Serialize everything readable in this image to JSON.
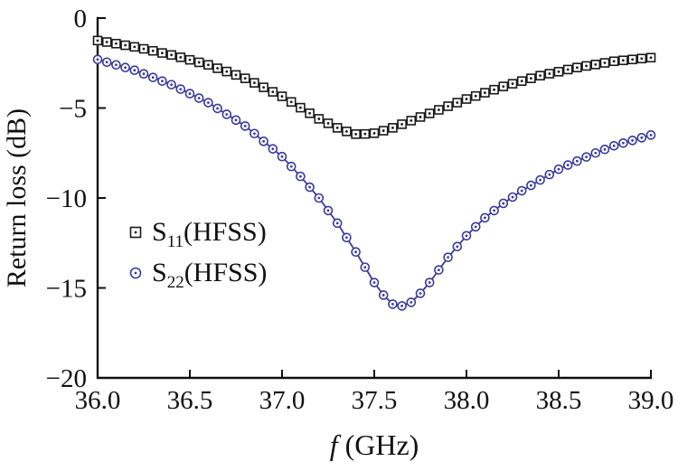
{
  "chart_data": {
    "type": "line",
    "title": "",
    "xlabel": {
      "italic": "f",
      "rest": " (GHz)"
    },
    "ylabel": "Return loss (dB)",
    "xlim": [
      36.0,
      39.0
    ],
    "ylim": [
      -20,
      0
    ],
    "grid": false,
    "axis_color": "#111111",
    "x_tick_values": [
      36.0,
      36.5,
      37.0,
      37.5,
      38.0,
      38.5,
      39.0
    ],
    "x_tick_labels": [
      "36.0",
      "36.5",
      "37.0",
      "37.5",
      "38.0",
      "38.5",
      "39.0"
    ],
    "y_tick_values": [
      0,
      -5,
      -10,
      -15,
      -20
    ],
    "y_tick_labels": [
      "0",
      "−5",
      "−10",
      "−15",
      "−20"
    ],
    "x": [
      36.0,
      36.05,
      36.1,
      36.15,
      36.2,
      36.25,
      36.3,
      36.35,
      36.4,
      36.45,
      36.5,
      36.55,
      36.6,
      36.65,
      36.7,
      36.75,
      36.8,
      36.85,
      36.9,
      36.95,
      37.0,
      37.05,
      37.1,
      37.15,
      37.2,
      37.25,
      37.3,
      37.35,
      37.4,
      37.45,
      37.5,
      37.55,
      37.6,
      37.65,
      37.7,
      37.75,
      37.8,
      37.85,
      37.9,
      37.95,
      38.0,
      38.05,
      38.1,
      38.15,
      38.2,
      38.25,
      38.3,
      38.35,
      38.4,
      38.45,
      38.5,
      38.55,
      38.6,
      38.65,
      38.7,
      38.75,
      38.8,
      38.85,
      38.9,
      38.95,
      39.0
    ],
    "series": [
      {
        "name": "S11(HFSS)",
        "legend": {
          "base": "S",
          "sub": "11",
          "rest": "(HFSS)"
        },
        "marker": "square",
        "color": "#1a1a1a",
        "values": [
          -1.25,
          -1.33,
          -1.42,
          -1.51,
          -1.6,
          -1.71,
          -1.82,
          -1.94,
          -2.05,
          -2.18,
          -2.32,
          -2.46,
          -2.6,
          -2.79,
          -2.97,
          -3.16,
          -3.35,
          -3.6,
          -3.85,
          -4.1,
          -4.35,
          -4.66,
          -4.98,
          -5.29,
          -5.6,
          -5.85,
          -6.1,
          -6.3,
          -6.45,
          -6.44,
          -6.4,
          -6.26,
          -6.1,
          -5.9,
          -5.7,
          -5.5,
          -5.3,
          -5.1,
          -4.9,
          -4.7,
          -4.5,
          -4.33,
          -4.15,
          -3.98,
          -3.8,
          -3.65,
          -3.5,
          -3.35,
          -3.2,
          -3.09,
          -2.98,
          -2.86,
          -2.75,
          -2.66,
          -2.58,
          -2.49,
          -2.4,
          -2.35,
          -2.3,
          -2.25,
          -2.2
        ]
      },
      {
        "name": "S22(HFSS)",
        "legend": {
          "base": "S",
          "sub": "22",
          "rest": "(HFSS)"
        },
        "marker": "circle",
        "color": "#3a3a9b",
        "values": [
          -2.3,
          -2.45,
          -2.6,
          -2.75,
          -2.9,
          -3.1,
          -3.3,
          -3.5,
          -3.7,
          -3.95,
          -4.2,
          -4.45,
          -4.7,
          -5.02,
          -5.35,
          -5.67,
          -6.0,
          -6.42,
          -6.85,
          -7.27,
          -7.7,
          -8.25,
          -8.8,
          -9.4,
          -10.0,
          -10.7,
          -11.4,
          -12.2,
          -13.0,
          -13.85,
          -14.7,
          -15.4,
          -15.9,
          -16.0,
          -15.8,
          -15.3,
          -14.7,
          -14.0,
          -13.3,
          -12.7,
          -12.1,
          -11.6,
          -11.1,
          -10.7,
          -10.3,
          -9.95,
          -9.6,
          -9.3,
          -9.0,
          -8.7,
          -8.4,
          -8.17,
          -7.95,
          -7.72,
          -7.5,
          -7.3,
          -7.1,
          -6.95,
          -6.8,
          -6.65,
          -6.5
        ]
      }
    ],
    "legend_position": "inside-left"
  }
}
